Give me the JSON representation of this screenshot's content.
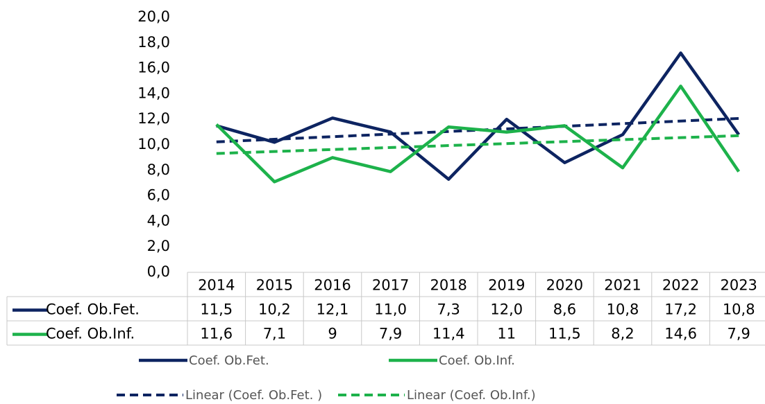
{
  "chart_data": {
    "type": "line",
    "categories": [
      "2014",
      "2015",
      "2016",
      "2017",
      "2018",
      "2019",
      "2020",
      "2021",
      "2022",
      "2023"
    ],
    "series": [
      {
        "name": "Coef. Ob.Fet.",
        "color": "#0d2461",
        "trendline_name": "Linear (Coef. Ob.Fet. )",
        "values": [
          11.5,
          10.2,
          12.1,
          11.0,
          7.3,
          12.0,
          8.6,
          10.8,
          17.2,
          10.8
        ],
        "value_labels": [
          "11,5",
          "10,2",
          "12,1",
          "11,0",
          "7,3",
          "12,0",
          "8,6",
          "10,8",
          "17,2",
          "10,8"
        ]
      },
      {
        "name": "Coef. Ob.Inf.",
        "color": "#1db24b",
        "trendline_name": "Linear (Coef. Ob.Inf.)",
        "values": [
          11.6,
          7.1,
          9,
          7.9,
          11.4,
          11,
          11.5,
          8.2,
          14.6,
          7.9
        ],
        "value_labels": [
          "11,6",
          "7,1",
          "9",
          "7,9",
          "11,4",
          "11",
          "11,5",
          "8,2",
          "14,6",
          "7,9"
        ]
      }
    ],
    "ylim": [
      0,
      20
    ],
    "yticks": [
      {
        "value": 0,
        "label": "0,0"
      },
      {
        "value": 2,
        "label": "2,0"
      },
      {
        "value": 4,
        "label": "4,0"
      },
      {
        "value": 6,
        "label": "6,0"
      },
      {
        "value": 8,
        "label": "8,0"
      },
      {
        "value": 10,
        "label": "10,0"
      },
      {
        "value": 12,
        "label": "12,0"
      },
      {
        "value": 14,
        "label": "14,0"
      },
      {
        "value": 16,
        "label": "16,0"
      },
      {
        "value": 18,
        "label": "18,0"
      },
      {
        "value": 20,
        "label": "20,0"
      }
    ],
    "grid": false,
    "trendline": "linear",
    "legend": "bottom"
  }
}
